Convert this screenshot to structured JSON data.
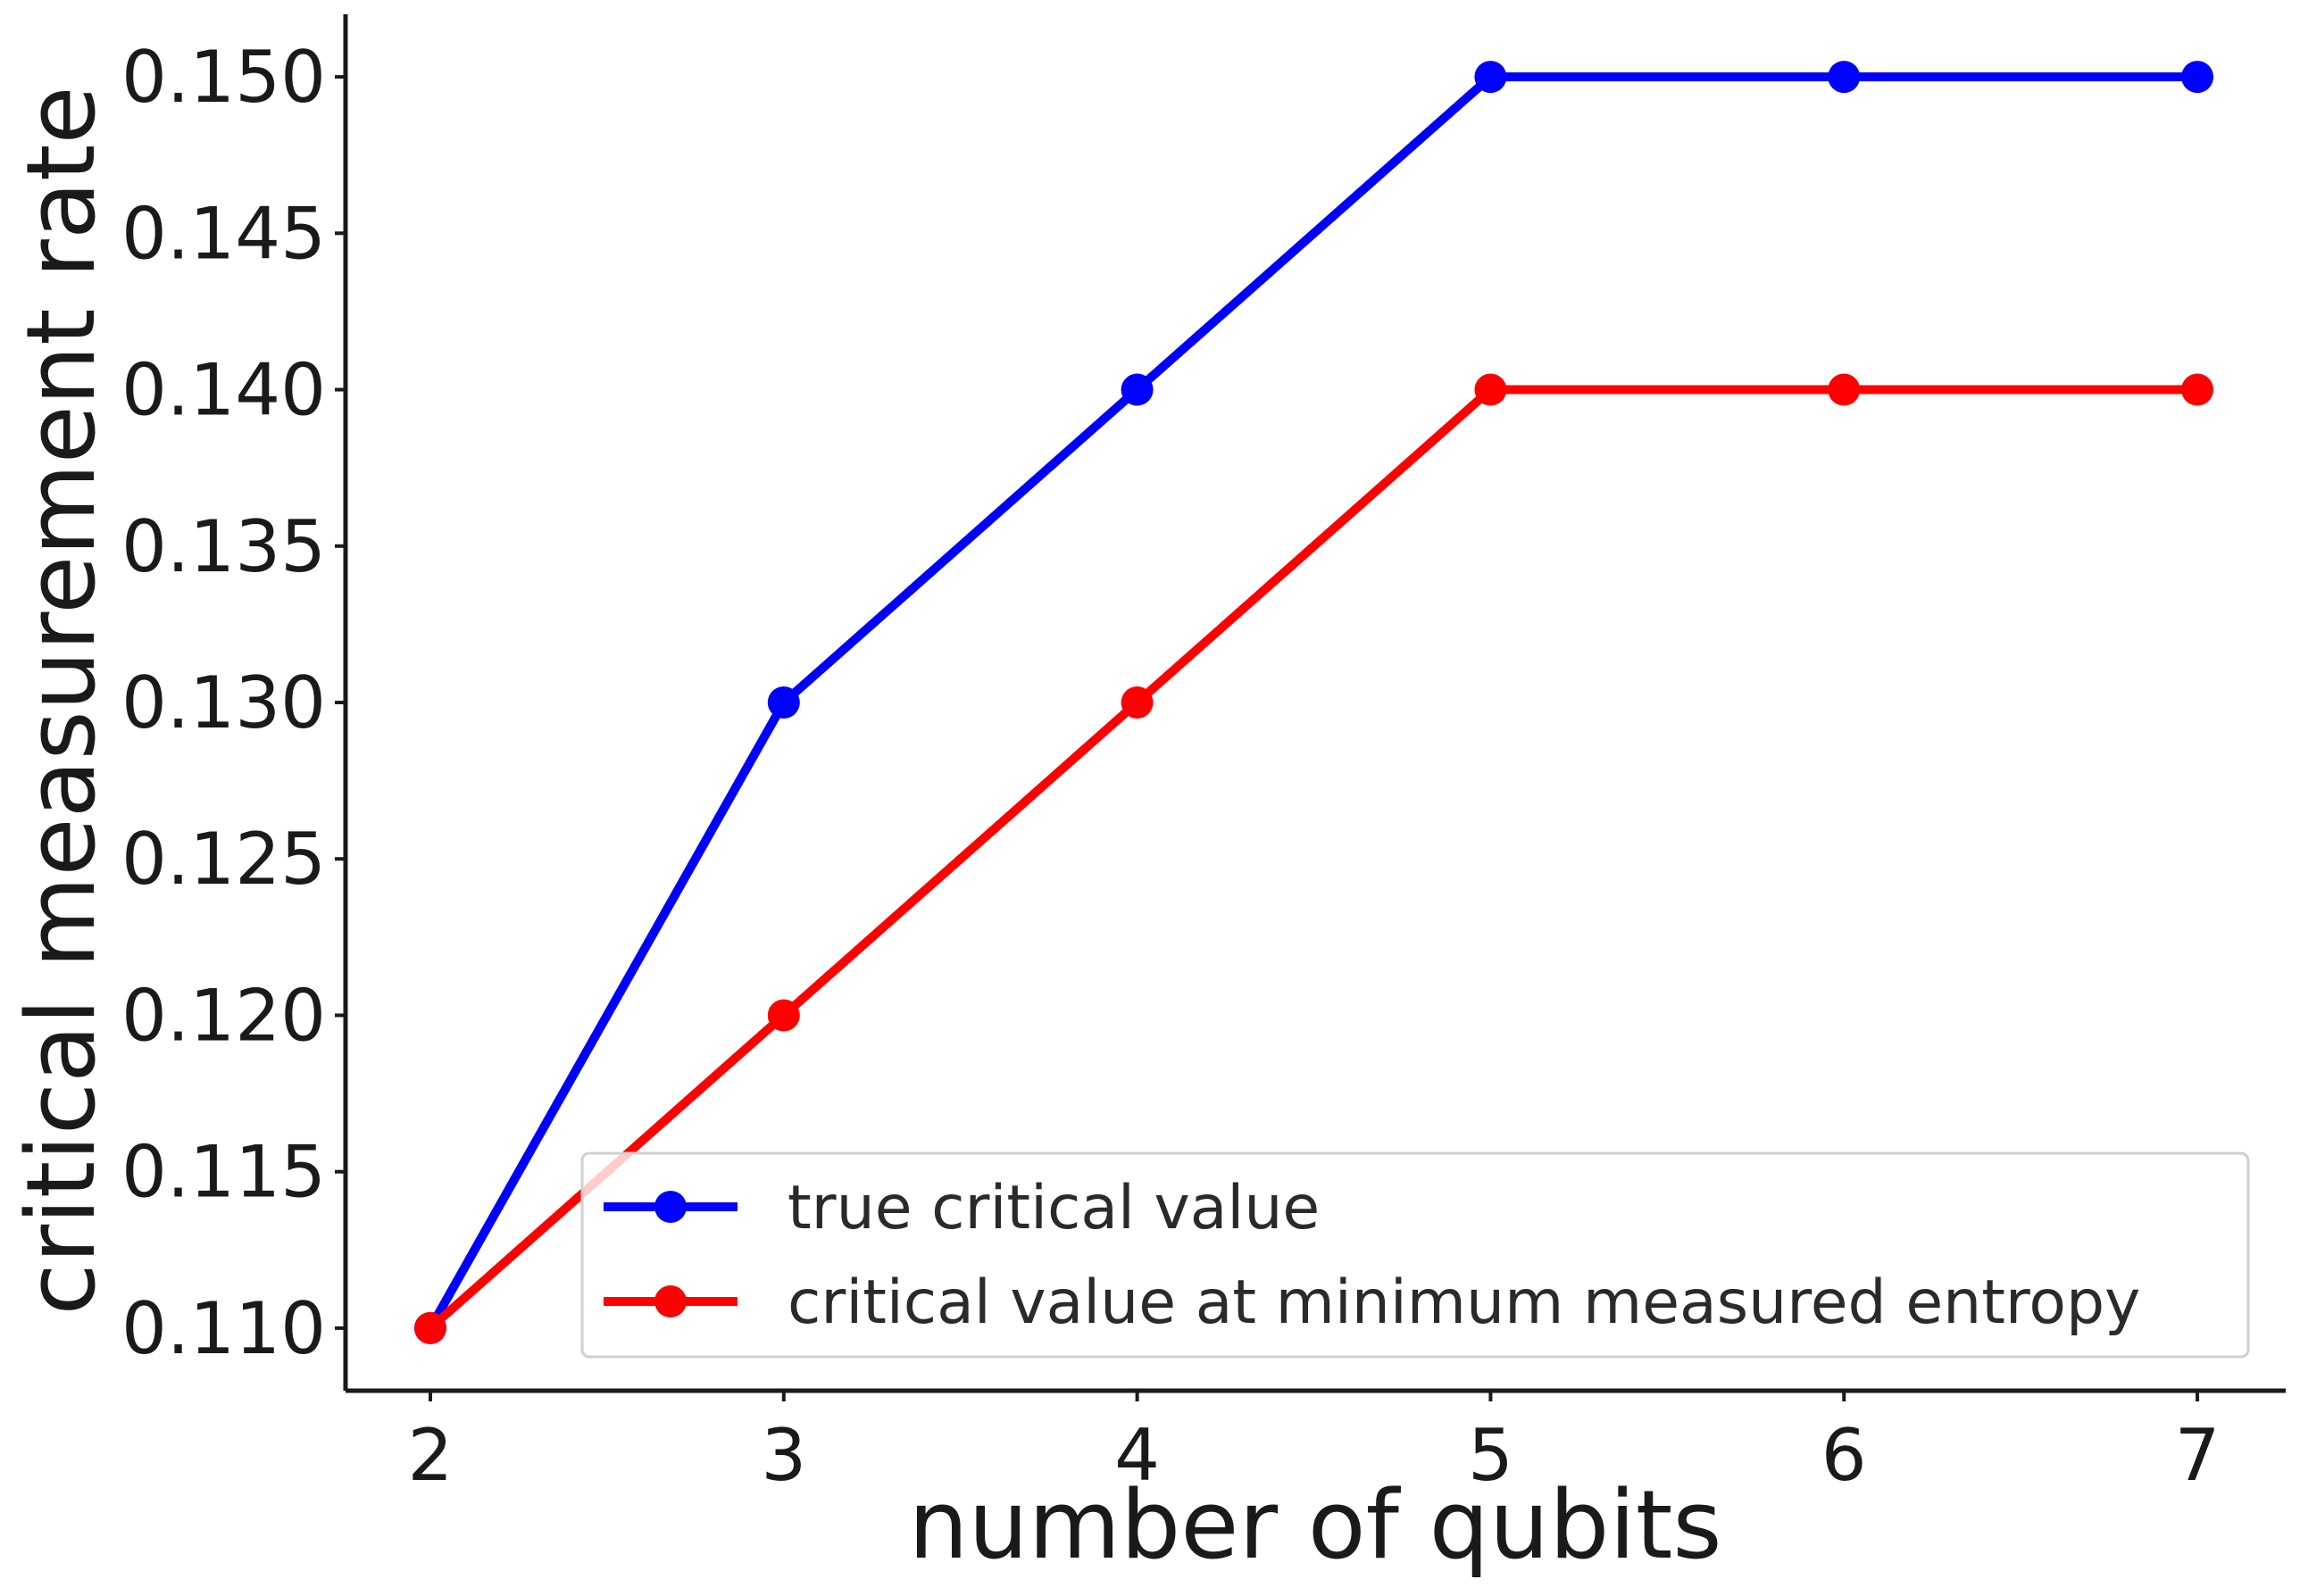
{
  "chart_data": {
    "type": "line",
    "xlabel": "number of qubits",
    "ylabel": "critical measurement rate",
    "x": [
      2,
      3,
      4,
      5,
      6,
      7
    ],
    "xlim": [
      1.76,
      7.25
    ],
    "ylim": [
      0.108,
      0.152
    ],
    "xticks": [
      "2",
      "3",
      "4",
      "5",
      "6",
      "7"
    ],
    "yticks": [
      "0.110",
      "0.115",
      "0.120",
      "0.125",
      "0.130",
      "0.135",
      "0.140",
      "0.145",
      "0.150"
    ],
    "grid": false,
    "legend_position": "lower-right",
    "series": [
      {
        "name": "true critical value",
        "color": "#0000ff",
        "marker": "circle",
        "values": [
          0.11,
          0.13,
          0.14,
          0.15,
          0.15,
          0.15
        ]
      },
      {
        "name": "critical value at minimum measured entropy",
        "color": "#ff0000",
        "marker": "circle",
        "values": [
          0.11,
          0.12,
          0.13,
          0.14,
          0.14,
          0.14
        ]
      }
    ]
  }
}
